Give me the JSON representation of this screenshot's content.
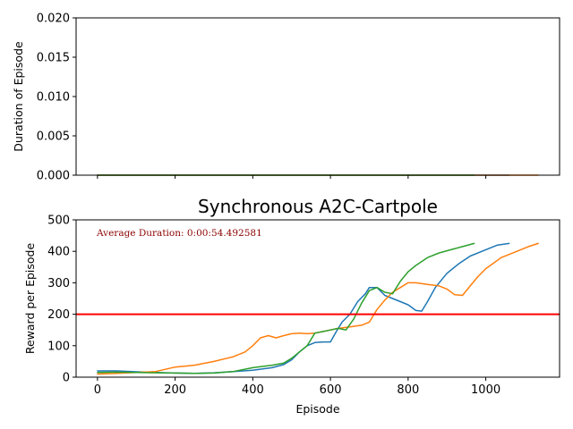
{
  "chart_data": [
    {
      "type": "line",
      "title": "",
      "xlabel": "",
      "ylabel": "Duration of Episode",
      "xlim": [
        -55,
        1190
      ],
      "ylim": [
        0,
        0.02
      ],
      "x_ticks": [
        0,
        200,
        400,
        600,
        800,
        1000
      ],
      "x_ticks_visible_labels": false,
      "y_ticks": [
        0.0,
        0.005,
        0.01,
        0.015,
        0.02
      ],
      "y_tick_labels": [
        "0.000",
        "0.005",
        "0.010",
        "0.015",
        "0.020"
      ],
      "series": [
        {
          "color": "#1f77b4",
          "x": [
            0,
            1060
          ],
          "y": [
            0,
            0
          ]
        },
        {
          "color": "#ff7f0e",
          "x": [
            0,
            1135
          ],
          "y": [
            0,
            0
          ]
        },
        {
          "color": "#2ca02c",
          "x": [
            0,
            970
          ],
          "y": [
            0,
            0
          ]
        }
      ],
      "grid": false
    },
    {
      "type": "line",
      "title": "Synchronous A2C-Cartpole",
      "xlabel": "Episode",
      "ylabel": "Reward per Episode",
      "xlim": [
        -55,
        1190
      ],
      "ylim": [
        0,
        500
      ],
      "x_ticks": [
        0,
        200,
        400,
        600,
        800,
        1000
      ],
      "x_tick_labels": [
        "0",
        "200",
        "400",
        "600",
        "800",
        "1000"
      ],
      "y_ticks": [
        0,
        100,
        200,
        300,
        400,
        500
      ],
      "y_tick_labels": [
        "0",
        "100",
        "200",
        "300",
        "400",
        "500"
      ],
      "annotation": {
        "text": "Average Duration: 0:00:54.492581",
        "color": "#8b0000"
      },
      "hline": {
        "y": 200,
        "color": "#ff0000"
      },
      "series": [
        {
          "color": "#1f77b4",
          "x": [
            0,
            50,
            100,
            150,
            200,
            250,
            300,
            350,
            400,
            450,
            480,
            500,
            520,
            540,
            560,
            580,
            600,
            615,
            630,
            650,
            670,
            690,
            700,
            720,
            740,
            760,
            780,
            800,
            820,
            835,
            850,
            870,
            900,
            930,
            960,
            1000,
            1030,
            1060
          ],
          "y": [
            20,
            20,
            17,
            15,
            13,
            12,
            14,
            18,
            22,
            30,
            40,
            55,
            80,
            100,
            110,
            112,
            112,
            145,
            175,
            200,
            240,
            265,
            285,
            285,
            260,
            250,
            240,
            230,
            212,
            210,
            240,
            285,
            330,
            360,
            385,
            405,
            420,
            425
          ]
        },
        {
          "color": "#ff7f0e",
          "x": [
            0,
            50,
            100,
            150,
            200,
            250,
            300,
            350,
            380,
            400,
            420,
            440,
            460,
            480,
            500,
            520,
            540,
            560,
            580,
            600,
            620,
            650,
            680,
            700,
            720,
            740,
            760,
            780,
            800,
            820,
            850,
            880,
            900,
            920,
            940,
            960,
            980,
            1000,
            1040,
            1080,
            1110,
            1135
          ],
          "y": [
            10,
            12,
            15,
            18,
            32,
            38,
            50,
            65,
            80,
            100,
            125,
            132,
            125,
            132,
            138,
            140,
            138,
            140,
            145,
            150,
            155,
            160,
            165,
            175,
            215,
            245,
            270,
            285,
            300,
            300,
            295,
            290,
            280,
            262,
            260,
            290,
            320,
            345,
            380,
            400,
            415,
            425
          ]
        },
        {
          "color": "#2ca02c",
          "x": [
            0,
            50,
            100,
            150,
            200,
            250,
            300,
            350,
            400,
            450,
            480,
            500,
            520,
            540,
            560,
            580,
            600,
            620,
            640,
            660,
            680,
            700,
            720,
            740,
            760,
            780,
            800,
            820,
            850,
            880,
            910,
            940,
            970
          ],
          "y": [
            15,
            16,
            15,
            14,
            13,
            12,
            13,
            18,
            30,
            38,
            45,
            60,
            80,
            100,
            140,
            145,
            150,
            155,
            150,
            185,
            235,
            275,
            285,
            270,
            265,
            305,
            335,
            355,
            380,
            395,
            405,
            415,
            425
          ]
        }
      ],
      "grid": false
    }
  ]
}
